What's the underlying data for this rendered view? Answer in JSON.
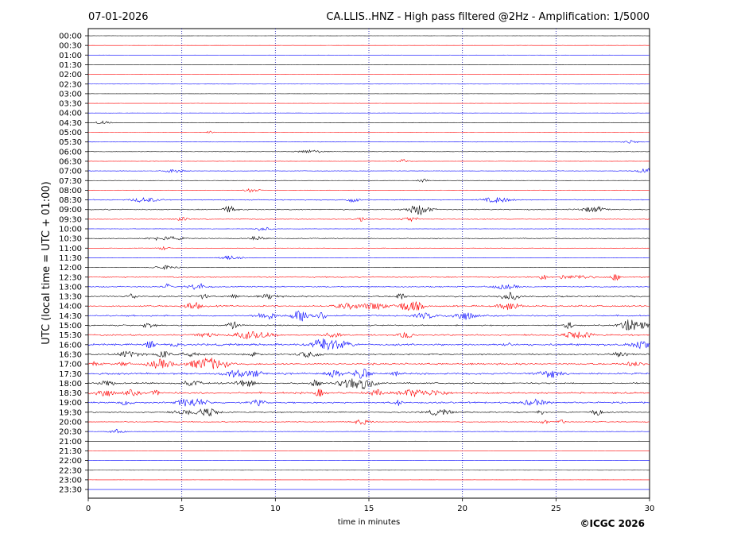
{
  "chart_data": {
    "type": "line",
    "date": "07-01-2026",
    "title": "CA.LLIS..HNZ - High pass filtered @2Hz - Amplification: 1/5000",
    "xlabel": "time in minutes",
    "ylabel": "UTC (local time = UTC + 01:00)",
    "copyright": "©ICGC 2026",
    "xlim": [
      0,
      30
    ],
    "x_ticks": [
      "0",
      "5",
      "10",
      "15",
      "20",
      "25",
      "30"
    ],
    "y_ticks": [
      "00:00",
      "00:30",
      "01:00",
      "01:30",
      "02:00",
      "02:30",
      "03:00",
      "03:30",
      "04:00",
      "04:30",
      "05:00",
      "05:30",
      "06:00",
      "06:30",
      "07:00",
      "07:30",
      "08:00",
      "08:30",
      "09:00",
      "09:30",
      "10:00",
      "10:30",
      "11:00",
      "11:30",
      "12:00",
      "12:30",
      "13:00",
      "13:30",
      "14:00",
      "14:30",
      "15:00",
      "15:30",
      "16:00",
      "16:30",
      "17:00",
      "17:30",
      "18:00",
      "18:30",
      "19:00",
      "19:30",
      "20:00",
      "20:30",
      "21:00",
      "21:30",
      "22:00",
      "22:30",
      "23:00",
      "23:30"
    ],
    "trace_colors": [
      "#000000",
      "#ff0000",
      "#0000ff"
    ],
    "grid_vertical": true,
    "grid_color": "#0000aa",
    "activity_levels": [
      0.05,
      0.05,
      0.05,
      0.05,
      0.06,
      0.06,
      0.08,
      0.07,
      0.08,
      0.09,
      0.1,
      0.12,
      0.15,
      0.1,
      0.18,
      0.12,
      0.12,
      0.3,
      0.35,
      0.28,
      0.12,
      0.3,
      0.15,
      0.12,
      0.1,
      0.4,
      0.4,
      0.5,
      0.55,
      0.5,
      0.45,
      0.5,
      0.7,
      0.5,
      0.6,
      0.6,
      0.55,
      0.65,
      0.55,
      0.45,
      0.25,
      0.15,
      0.04,
      0.03,
      0.03,
      0.03,
      0.04,
      0.03
    ]
  }
}
